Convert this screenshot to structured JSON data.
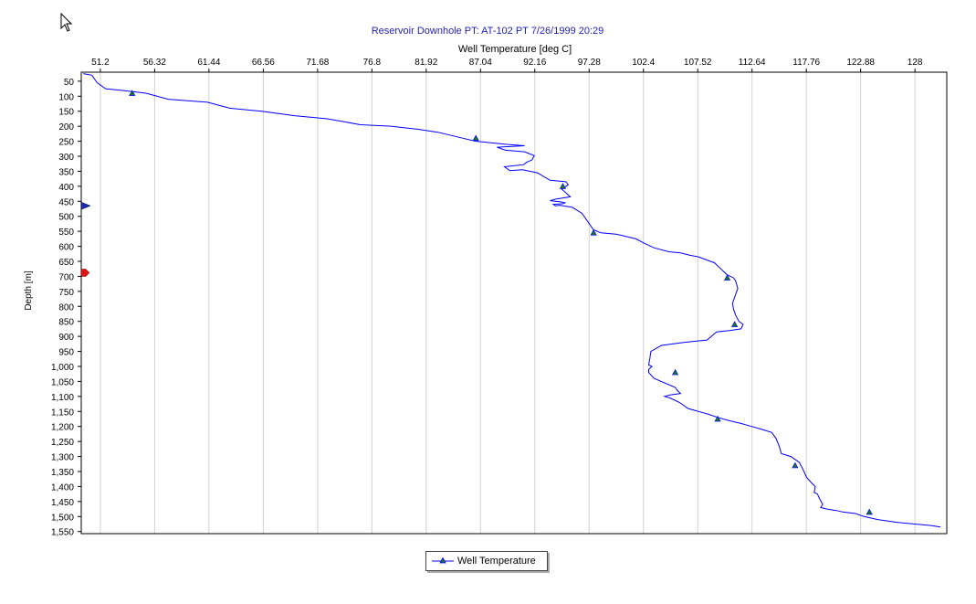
{
  "chart_data": {
    "type": "line",
    "title": "Reservoir Downhole PT:   AT-102 PT 7/26/1999 20:29",
    "xlabel": "Well Temperature [deg C]",
    "ylabel": "Depth [m]",
    "x_axis_position": "top",
    "y_axis_inverted": true,
    "xlim": [
      49.4,
      131.0
    ],
    "ylim": [
      20,
      1557
    ],
    "x_ticks": [
      51.2,
      56.32,
      61.44,
      66.56,
      71.68,
      76.8,
      81.92,
      87.04,
      92.16,
      97.28,
      102.4,
      107.52,
      112.64,
      117.76,
      122.88,
      128
    ],
    "x_tick_labels": [
      "51.2",
      "56.32",
      "61.44",
      "66.56",
      "71.68",
      "76.8",
      "81.92",
      "87.04",
      "92.16",
      "97.28",
      "102.4",
      "107.52",
      "112.64",
      "117.76",
      "122.88",
      "128"
    ],
    "y_ticks": [
      50,
      100,
      150,
      200,
      250,
      300,
      350,
      400,
      450,
      500,
      550,
      600,
      650,
      700,
      750,
      800,
      850,
      900,
      950,
      1000,
      1050,
      1100,
      1150,
      1200,
      1250,
      1300,
      1350,
      1400,
      1450,
      1500,
      1550
    ],
    "y_tick_labels": [
      "50",
      "100",
      "150",
      "200",
      "250",
      "300",
      "350",
      "400",
      "450",
      "500",
      "550",
      "600",
      "650",
      "700",
      "750",
      "800",
      "850",
      "900",
      "950",
      "1,000",
      "1,050",
      "1,100",
      "1,150",
      "1,200",
      "1,250",
      "1,300",
      "1,350",
      "1,400",
      "1,450",
      "1,500",
      "1,550"
    ],
    "grid": {
      "vertical": true,
      "horizontal": false
    },
    "series": [
      {
        "name": "Well Temperature",
        "color": "#0000ff",
        "marker": "triangle",
        "marker_color": "#1a7a1a",
        "x": [
          49.6,
          50.4,
          50.6,
          50.9,
          51.7,
          53.6,
          55.5,
          57.6,
          61.3,
          63.4,
          66.4,
          69.5,
          72.5,
          74.2,
          75.7,
          78.6,
          79.8,
          81.1,
          83.0,
          85.4,
          86.6,
          87.2,
          89.4,
          91.2,
          88.6,
          89.4,
          91.2,
          92.1,
          91.9,
          91.4,
          91.1,
          89.3,
          89.8,
          91.0,
          92.4,
          93.6,
          95.1,
          95.3,
          94.7,
          95.2,
          95.5,
          94.2,
          93.6,
          94.6,
          95.0,
          94.8,
          93.9,
          94.1,
          94.5,
          95.7,
          96.6,
          97.2,
          97.7,
          98.4,
          99.9,
          101.7,
          102.5,
          103.4,
          104.8,
          105.9,
          106.8,
          107.6,
          109.1,
          109.6,
          110.3,
          110.9,
          111.1,
          111.3,
          111.0,
          110.8,
          110.9,
          111.1,
          111.4,
          111.8,
          111.6,
          110.6,
          109.3,
          108.8,
          108.4,
          106.2,
          104.1,
          103.1,
          103.0,
          102.9,
          103.2,
          102.9,
          102.9,
          103.4,
          105.4,
          105.6,
          105.9,
          104.9,
          104.4,
          104.9,
          105.8,
          106.6,
          107.6,
          108.6,
          109.4,
          110.4,
          111.6,
          112.6,
          113.6,
          114.5,
          114.9,
          115.2,
          115.4,
          116.3,
          116.7,
          117.1,
          117.4,
          117.8,
          118.3,
          118.6,
          118.5,
          118.8,
          119.0,
          119.3,
          119.1,
          119.7,
          120.6,
          121.2,
          122.4,
          123.2,
          124.5,
          126.4,
          128.0,
          129.5,
          130.4
        ],
        "y": [
          25,
          30,
          40,
          55,
          75,
          82,
          90,
          110,
          120,
          140,
          150,
          165,
          175,
          185,
          195,
          200,
          205,
          210,
          220,
          240,
          250,
          252,
          260,
          265,
          270,
          280,
          285,
          298,
          312,
          320,
          328,
          335,
          348,
          345,
          355,
          380,
          385,
          395,
          410,
          425,
          435,
          442,
          448,
          452,
          455,
          458,
          460,
          465,
          463,
          470,
          490,
          520,
          545,
          555,
          560,
          575,
          590,
          605,
          618,
          622,
          630,
          635,
          655,
          672,
          695,
          705,
          716,
          740,
          770,
          790,
          810,
          830,
          850,
          860,
          875,
          880,
          885,
          900,
          912,
          920,
          930,
          950,
          975,
          995,
          1000,
          1010,
          1020,
          1040,
          1070,
          1080,
          1090,
          1095,
          1100,
          1105,
          1120,
          1140,
          1150,
          1160,
          1170,
          1180,
          1190,
          1200,
          1210,
          1220,
          1240,
          1265,
          1290,
          1300,
          1310,
          1320,
          1340,
          1370,
          1390,
          1400,
          1420,
          1425,
          1440,
          1460,
          1470,
          1475,
          1480,
          1485,
          1490,
          1500,
          1510,
          1520,
          1525,
          1530,
          1535
        ],
        "markers_x": [
          54.2,
          86.6,
          94.8,
          97.7,
          110.3,
          111.0,
          105.4,
          109.4,
          116.7,
          123.7
        ],
        "markers_y": [
          90,
          240,
          400,
          555,
          705,
          860,
          1020,
          1175,
          1330,
          1485
        ]
      }
    ],
    "legend": {
      "position": "bottom-center",
      "label": "Well Temperature"
    },
    "depth_markers": [
      {
        "depth": 465,
        "color": "#1c2bb8",
        "shape": "triangle"
      },
      {
        "depth": 688,
        "color": "#e01515",
        "shape": "pentagon"
      }
    ]
  }
}
